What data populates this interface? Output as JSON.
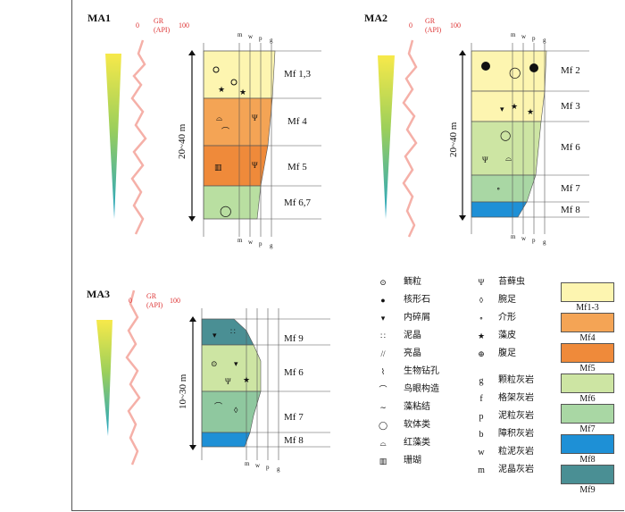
{
  "sections": [
    {
      "id": "MA1",
      "title": "MA1",
      "gr_label_top": "GR",
      "gr_label_bottom": "(API)",
      "gr_min": "0",
      "gr_max": "100",
      "thickness": "20~40 m",
      "top_ticks": [
        "m",
        "w",
        "p",
        "g"
      ],
      "bottom_ticks": [
        "m",
        "w",
        "p",
        "g"
      ],
      "facies": [
        "Mf 1,3",
        "Mf 4",
        "Mf 5",
        "Mf 6,7"
      ],
      "colors": [
        "#fdf5b0",
        "#f4a455",
        "#ef8a3a",
        "#b9dfa1"
      ]
    },
    {
      "id": "MA2",
      "title": "MA2",
      "gr_label_top": "GR",
      "gr_label_bottom": "(API)",
      "gr_min": "0",
      "gr_max": "100",
      "thickness": "20~40 m",
      "top_ticks": [
        "m",
        "w",
        "p",
        "g"
      ],
      "bottom_ticks": [
        "m",
        "w",
        "p",
        "g"
      ],
      "facies": [
        "Mf 2",
        "Mf 3",
        "Mf 6",
        "Mf 7",
        "Mf 8"
      ],
      "colors": [
        "#fdf5b0",
        "#fdf5b0",
        "#cde5a3",
        "#a9d7a4",
        "#1e90d6"
      ]
    },
    {
      "id": "MA3",
      "title": "MA3",
      "gr_label_top": "GR",
      "gr_label_bottom": "(API)",
      "gr_min": "0",
      "gr_max": "100",
      "thickness": "10~30 m",
      "top_ticks": [],
      "bottom_ticks": [
        "m",
        "w",
        "p",
        "g"
      ],
      "facies": [
        "Mf 9",
        "Mf 6",
        "Mf 7",
        "Mf 8"
      ],
      "colors": [
        "#4a8f94",
        "#cde5a3",
        "#8fc89f",
        "#1e90d6"
      ]
    }
  ],
  "legend": {
    "symbols_col1": [
      {
        "icon": "ooid-icon",
        "glyph": "⊙",
        "label": "鲕粒"
      },
      {
        "icon": "oncoid-icon",
        "glyph": "●",
        "label": "核形石"
      },
      {
        "icon": "intraclast-icon",
        "glyph": "▾",
        "label": "内碎屑"
      },
      {
        "icon": "micrite-icon",
        "glyph": "∷",
        "label": "泥晶"
      },
      {
        "icon": "sparite-icon",
        "glyph": "//",
        "label": "亮晶"
      },
      {
        "icon": "burrow-icon",
        "glyph": "⌇",
        "label": "生物钻孔"
      },
      {
        "icon": "birdseye-icon",
        "glyph": "⌒",
        "label": "鸟眼构造"
      },
      {
        "icon": "algal-bind-icon",
        "glyph": "∼",
        "label": "藻粘结"
      },
      {
        "icon": "mollusc-icon",
        "glyph": "◯",
        "label": "软体类"
      },
      {
        "icon": "red-algae-icon",
        "glyph": "⌓",
        "label": "红藻类"
      },
      {
        "icon": "coral-icon",
        "glyph": "▥",
        "label": "珊瑚"
      }
    ],
    "symbols_col2": [
      {
        "icon": "bryozoan-icon",
        "glyph": "Ψ",
        "label": "苔藓虫"
      },
      {
        "icon": "brachiopod-icon",
        "glyph": "◊",
        "label": "腕足"
      },
      {
        "icon": "ostracod-icon",
        "glyph": "∘",
        "label": "介形"
      },
      {
        "icon": "algal-crust-icon",
        "glyph": "★",
        "label": "藻皮"
      },
      {
        "icon": "crinoid-icon",
        "glyph": "⊕",
        "label": "腹足"
      }
    ],
    "lithology": [
      {
        "code": "g",
        "label": "颗粒灰岩"
      },
      {
        "code": "f",
        "label": "格架灰岩"
      },
      {
        "code": "p",
        "label": "泥粒灰岩"
      },
      {
        "code": "b",
        "label": "障积灰岩"
      },
      {
        "code": "w",
        "label": "粒泥灰岩"
      },
      {
        "code": "m",
        "label": "泥晶灰岩"
      }
    ],
    "swatches": [
      {
        "label": "Mf1-3",
        "color": "#fdf5b0"
      },
      {
        "label": "Mf4",
        "color": "#f4a455"
      },
      {
        "label": "Mf5",
        "color": "#ef8a3a"
      },
      {
        "label": "Mf6",
        "color": "#cde5a3"
      },
      {
        "label": "Mf7",
        "color": "#a9d7a4"
      },
      {
        "label": "Mf8",
        "color": "#1e90d6"
      },
      {
        "label": "Mf9",
        "color": "#4a8f94"
      }
    ]
  }
}
